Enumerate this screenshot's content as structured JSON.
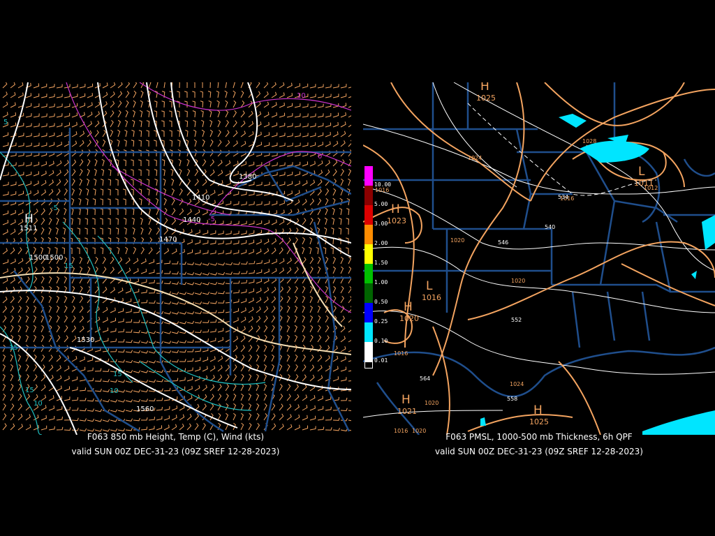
{
  "left": {
    "title": "F063 850 mb Height, Temp (C), Wind (kts)",
    "valid": "valid SUN 00Z DEC-31-23 (09Z SREF 12-28-2023)",
    "high_symbol": "H",
    "high_value": "1511",
    "height_labels": [
      "1500",
      "1500",
      "1410",
      "1440",
      "1470",
      "1380",
      "1530",
      "1560"
    ],
    "temp_labels": [
      "10",
      "-5",
      "0",
      "-5",
      "5",
      "15",
      "10",
      "15",
      "15",
      "10",
      "15"
    ],
    "colors": {
      "height": "#ffffff",
      "height_alt": "#f5deb3",
      "temp_cold": "#cc33cc",
      "temp_warm": "#20c0c0",
      "wind": "#f4a460",
      "border": "#1f4e8c"
    }
  },
  "right": {
    "title": "F063 PMSL, 1000-500 mb Thickness, 6h QPF",
    "valid": "valid SUN 00Z DEC-31-23 (09Z SREF 12-28-2023)",
    "pressure_centers": [
      {
        "symbol": "H",
        "value": "1025"
      },
      {
        "symbol": "H",
        "value": "1023"
      },
      {
        "symbol": "L",
        "value": "1016"
      },
      {
        "symbol": "H",
        "value": "1020"
      },
      {
        "symbol": "L",
        "value": "1011"
      },
      {
        "symbol": "H",
        "value": "1021"
      },
      {
        "symbol": "H",
        "value": "1025"
      }
    ],
    "isobar_labels": [
      "1024",
      "1016",
      "1020",
      "1020",
      "1016",
      "1020",
      "1020",
      "1024",
      "1028",
      "1016",
      "1012",
      "1016"
    ],
    "thickness_labels": [
      "534",
      "540",
      "546",
      "552",
      "558",
      "564"
    ],
    "qpf_legend": [
      {
        "label": "10.00",
        "color": "#ff00ff"
      },
      {
        "label": "5.00",
        "color": "#8b0000"
      },
      {
        "label": "3.00",
        "color": "#dd0000"
      },
      {
        "label": "2.00",
        "color": "#ff8c00"
      },
      {
        "label": "1.50",
        "color": "#ffff00"
      },
      {
        "label": "1.00",
        "color": "#00c000"
      },
      {
        "label": "0.50",
        "color": "#006400"
      },
      {
        "label": "0.25",
        "color": "#0000ff"
      },
      {
        "label": "0.10",
        "color": "#00e5ff"
      },
      {
        "label": "0.01",
        "color": "#ffffff"
      }
    ],
    "colors": {
      "isobar": "#f4a460",
      "thickness": "#ffffff",
      "border": "#1f4e8c",
      "qpf_light": "#00e5ff"
    }
  }
}
